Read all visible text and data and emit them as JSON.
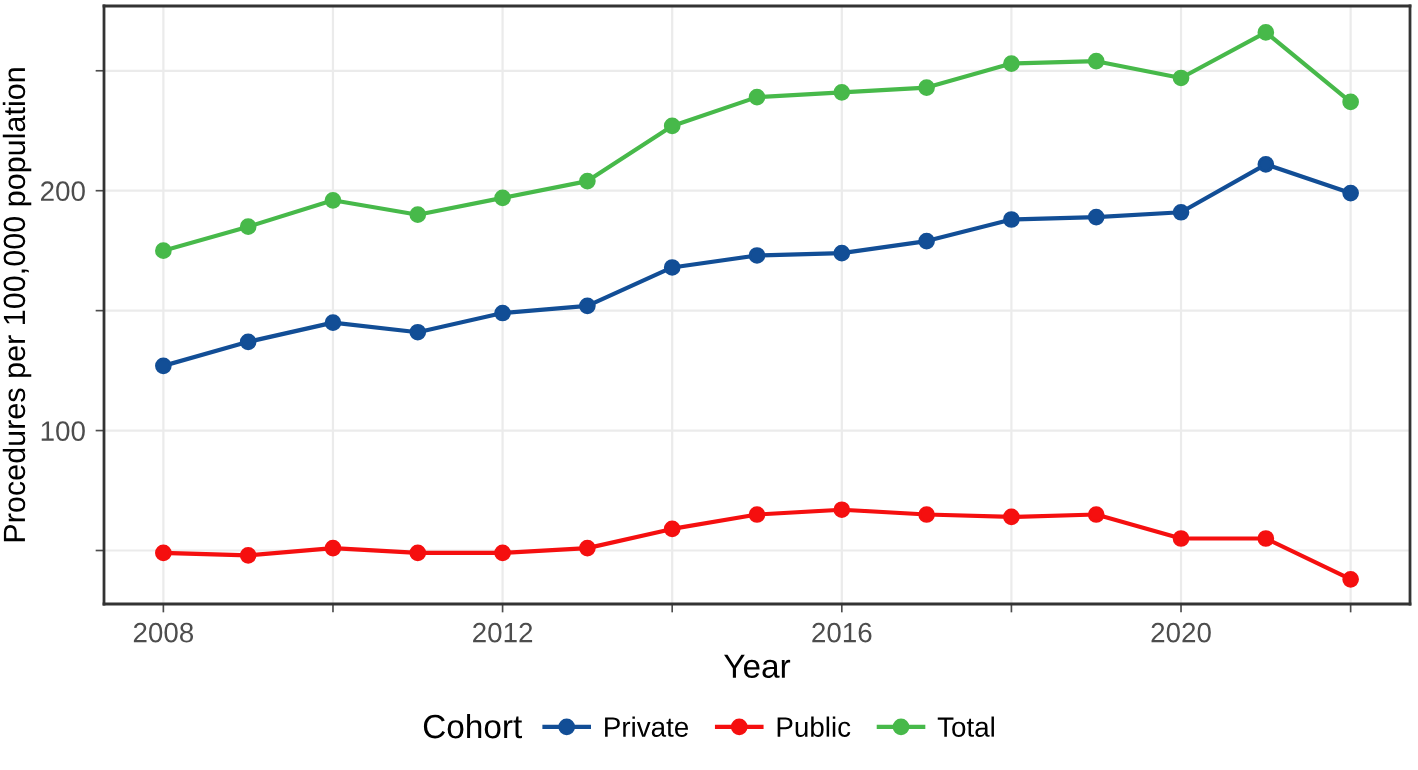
{
  "chart_data": {
    "type": "line",
    "xlabel": "Year",
    "ylabel": "Procedures per 100,000 population",
    "legend_title": "Cohort",
    "x": [
      2008,
      2009,
      2010,
      2011,
      2012,
      2013,
      2014,
      2015,
      2016,
      2017,
      2018,
      2019,
      2020,
      2021,
      2022
    ],
    "series": [
      {
        "name": "Private",
        "color": "#124e96",
        "values": [
          127,
          137,
          145,
          141,
          149,
          152,
          168,
          173,
          174,
          179,
          188,
          189,
          191,
          211,
          199
        ]
      },
      {
        "name": "Public",
        "color": "#f50f0f",
        "values": [
          49,
          48,
          51,
          49,
          49,
          51,
          59,
          65,
          67,
          65,
          64,
          65,
          55,
          55,
          38
        ]
      },
      {
        "name": "Total",
        "color": "#47b94a",
        "values": [
          175,
          185,
          196,
          190,
          197,
          204,
          227,
          239,
          241,
          243,
          253,
          254,
          247,
          266,
          237
        ]
      }
    ],
    "xlim": [
      2007.3,
      2022.7
    ],
    "ylim": [
      27.7,
      277
    ],
    "xticks": [
      2008,
      {
        "value": 2010,
        "label": null
      },
      2012,
      {
        "value": 2014,
        "label": null
      },
      2016,
      {
        "value": 2018,
        "label": null
      },
      2020,
      {
        "value": 2022,
        "label": null
      }
    ],
    "yticks": [
      {
        "value": 50,
        "label": null
      },
      100,
      {
        "value": 150,
        "label": null
      },
      200,
      {
        "value": 250,
        "label": null
      }
    ],
    "grid": true,
    "legend": "bottom",
    "marker": "circle",
    "line_style": "solid"
  }
}
